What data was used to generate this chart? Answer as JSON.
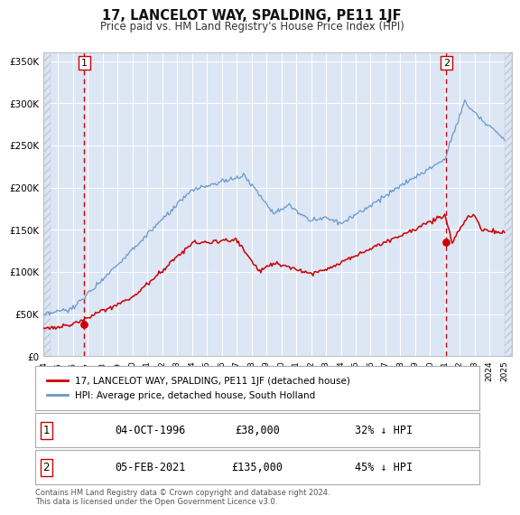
{
  "title": "17, LANCELOT WAY, SPALDING, PE11 1JF",
  "subtitle": "Price paid vs. HM Land Registry's House Price Index (HPI)",
  "legend_label_red": "17, LANCELOT WAY, SPALDING, PE11 1JF (detached house)",
  "legend_label_blue": "HPI: Average price, detached house, South Holland",
  "point1_date": "04-OCT-1996",
  "point1_price": "£38,000",
  "point1_hpi": "32% ↓ HPI",
  "point1_year": 1996.75,
  "point1_value": 38000,
  "point2_date": "05-FEB-2021",
  "point2_price": "£135,000",
  "point2_hpi": "45% ↓ HPI",
  "point2_year": 2021.1,
  "point2_value": 135000,
  "ylim": [
    0,
    360000
  ],
  "yticks": [
    0,
    50000,
    100000,
    150000,
    200000,
    250000,
    300000,
    350000
  ],
  "ytick_labels": [
    "£0",
    "£50K",
    "£100K",
    "£150K",
    "£200K",
    "£250K",
    "£300K",
    "£350K"
  ],
  "plot_bg_color": "#dce6f5",
  "grid_color": "#ffffff",
  "red_color": "#cc0000",
  "blue_color": "#6699cc",
  "vline_color": "#cc0000",
  "fig_bg_color": "#ffffff",
  "footnote": "Contains HM Land Registry data © Crown copyright and database right 2024.\nThis data is licensed under the Open Government Licence v3.0."
}
